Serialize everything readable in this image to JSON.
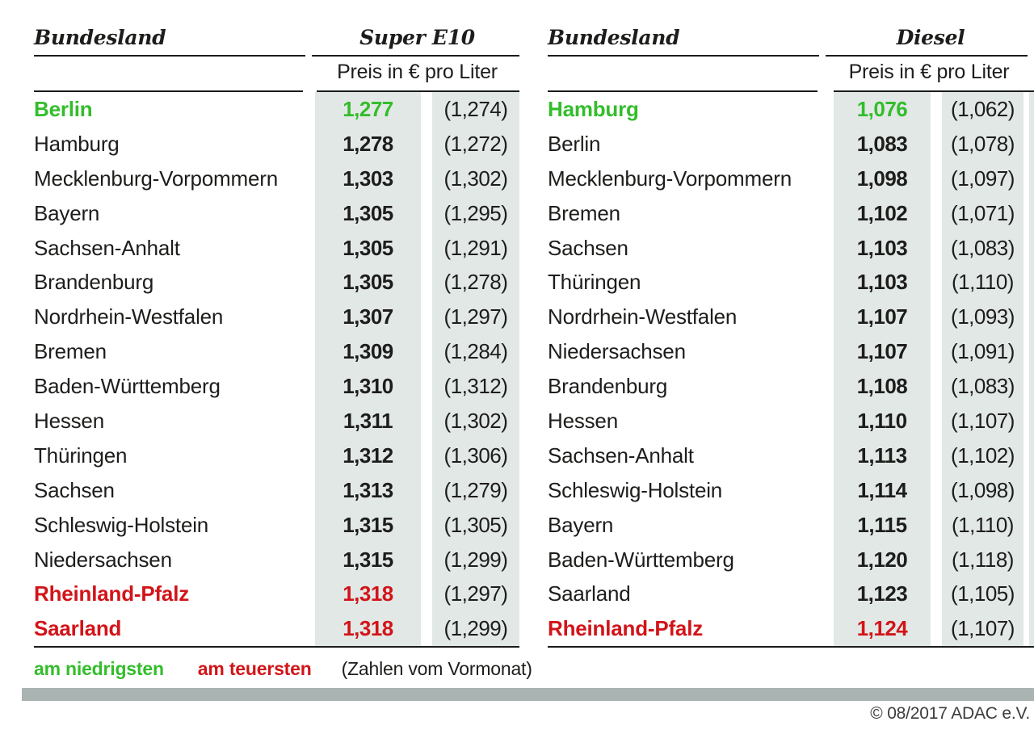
{
  "page": {
    "legend": {
      "lowest_label": "am niedrigsten",
      "highest_label": "am teuersten",
      "footnote": "(Zahlen vom Vormonat)"
    },
    "copyright": "© 08/2017 ADAC e.V.",
    "colors": {
      "lowest_green": "#33bd2b",
      "highest_red": "#d21419",
      "value_column_bg": "#e2e8e6",
      "footer_bar": "#aab4b2",
      "rule": "#1b1b1b",
      "text": "#1d1d1b"
    }
  },
  "chart_data": [
    {
      "type": "table",
      "title": "Super E10",
      "name_header": "Bundesland",
      "unit_header": "Preis in € pro Liter",
      "columns": [
        "Bundesland",
        "Preis in € pro Liter (aktuell)",
        "Preis in € pro Liter (Vormonat)"
      ],
      "legend_note": "gruen = am niedrigsten, rot = am teuersten, Klammerwerte = Vormonat",
      "rows": [
        {
          "name": "Berlin",
          "value": "1,277",
          "prev": "(1,274)",
          "value_eur": 1.277,
          "prev_eur": 1.274,
          "highlight": "lowest"
        },
        {
          "name": "Hamburg",
          "value": "1,278",
          "prev": "(1,272)",
          "value_eur": 1.278,
          "prev_eur": 1.272,
          "highlight": null
        },
        {
          "name": "Mecklenburg-Vorpommern",
          "value": "1,303",
          "prev": "(1,302)",
          "value_eur": 1.303,
          "prev_eur": 1.302,
          "highlight": null
        },
        {
          "name": "Bayern",
          "value": "1,305",
          "prev": "(1,295)",
          "value_eur": 1.305,
          "prev_eur": 1.295,
          "highlight": null
        },
        {
          "name": "Sachsen-Anhalt",
          "value": "1,305",
          "prev": "(1,291)",
          "value_eur": 1.305,
          "prev_eur": 1.291,
          "highlight": null
        },
        {
          "name": "Brandenburg",
          "value": "1,305",
          "prev": "(1,278)",
          "value_eur": 1.305,
          "prev_eur": 1.278,
          "highlight": null
        },
        {
          "name": "Nordrhein-Westfalen",
          "value": "1,307",
          "prev": "(1,297)",
          "value_eur": 1.307,
          "prev_eur": 1.297,
          "highlight": null
        },
        {
          "name": "Bremen",
          "value": "1,309",
          "prev": "(1,284)",
          "value_eur": 1.309,
          "prev_eur": 1.284,
          "highlight": null
        },
        {
          "name": "Baden-Württemberg",
          "value": "1,310",
          "prev": "(1,312)",
          "value_eur": 1.31,
          "prev_eur": 1.312,
          "highlight": null
        },
        {
          "name": "Hessen",
          "value": "1,311",
          "prev": "(1,302)",
          "value_eur": 1.311,
          "prev_eur": 1.302,
          "highlight": null
        },
        {
          "name": "Thüringen",
          "value": "1,312",
          "prev": "(1,306)",
          "value_eur": 1.312,
          "prev_eur": 1.306,
          "highlight": null
        },
        {
          "name": "Sachsen",
          "value": "1,313",
          "prev": "(1,279)",
          "value_eur": 1.313,
          "prev_eur": 1.279,
          "highlight": null
        },
        {
          "name": "Schleswig-Holstein",
          "value": "1,315",
          "prev": "(1,305)",
          "value_eur": 1.315,
          "prev_eur": 1.305,
          "highlight": null
        },
        {
          "name": "Niedersachsen",
          "value": "1,315",
          "prev": "(1,299)",
          "value_eur": 1.315,
          "prev_eur": 1.299,
          "highlight": null
        },
        {
          "name": "Rheinland-Pfalz",
          "value": "1,318",
          "prev": "(1,297)",
          "value_eur": 1.318,
          "prev_eur": 1.297,
          "highlight": "highest"
        },
        {
          "name": "Saarland",
          "value": "1,318",
          "prev": "(1,299)",
          "value_eur": 1.318,
          "prev_eur": 1.299,
          "highlight": "highest"
        }
      ]
    },
    {
      "type": "table",
      "title": "Diesel",
      "name_header": "Bundesland",
      "unit_header": "Preis in € pro Liter",
      "columns": [
        "Bundesland",
        "Preis in € pro Liter (aktuell)",
        "Preis in € pro Liter (Vormonat)"
      ],
      "legend_note": "gruen = am niedrigsten, rot = am teuersten, Klammerwerte = Vormonat",
      "rows": [
        {
          "name": "Hamburg",
          "value": "1,076",
          "prev": "(1,062)",
          "value_eur": 1.076,
          "prev_eur": 1.062,
          "highlight": "lowest"
        },
        {
          "name": "Berlin",
          "value": "1,083",
          "prev": "(1,078)",
          "value_eur": 1.083,
          "prev_eur": 1.078,
          "highlight": null
        },
        {
          "name": "Mecklenburg-Vorpommern",
          "value": "1,098",
          "prev": "(1,097)",
          "value_eur": 1.098,
          "prev_eur": 1.097,
          "highlight": null
        },
        {
          "name": "Bremen",
          "value": "1,102",
          "prev": "(1,071)",
          "value_eur": 1.102,
          "prev_eur": 1.071,
          "highlight": null
        },
        {
          "name": "Sachsen",
          "value": "1,103",
          "prev": "(1,083)",
          "value_eur": 1.103,
          "prev_eur": 1.083,
          "highlight": null
        },
        {
          "name": "Thüringen",
          "value": "1,103",
          "prev": "(1,110)",
          "value_eur": 1.103,
          "prev_eur": 1.11,
          "highlight": null
        },
        {
          "name": "Nordrhein-Westfalen",
          "value": "1,107",
          "prev": "(1,093)",
          "value_eur": 1.107,
          "prev_eur": 1.093,
          "highlight": null
        },
        {
          "name": "Niedersachsen",
          "value": "1,107",
          "prev": "(1,091)",
          "value_eur": 1.107,
          "prev_eur": 1.091,
          "highlight": null
        },
        {
          "name": "Brandenburg",
          "value": "1,108",
          "prev": "(1,083)",
          "value_eur": 1.108,
          "prev_eur": 1.083,
          "highlight": null
        },
        {
          "name": "Hessen",
          "value": "1,110",
          "prev": "(1,107)",
          "value_eur": 1.11,
          "prev_eur": 1.107,
          "highlight": null
        },
        {
          "name": "Sachsen-Anhalt",
          "value": "1,113",
          "prev": "(1,102)",
          "value_eur": 1.113,
          "prev_eur": 1.102,
          "highlight": null
        },
        {
          "name": "Schleswig-Holstein",
          "value": "1,114",
          "prev": "(1,098)",
          "value_eur": 1.114,
          "prev_eur": 1.098,
          "highlight": null
        },
        {
          "name": "Bayern",
          "value": "1,115",
          "prev": "(1,110)",
          "value_eur": 1.115,
          "prev_eur": 1.11,
          "highlight": null
        },
        {
          "name": "Baden-Württemberg",
          "value": "1,120",
          "prev": "(1,118)",
          "value_eur": 1.12,
          "prev_eur": 1.118,
          "highlight": null
        },
        {
          "name": "Saarland",
          "value": "1,123",
          "prev": "(1,105)",
          "value_eur": 1.123,
          "prev_eur": 1.105,
          "highlight": null
        },
        {
          "name": "Rheinland-Pfalz",
          "value": "1,124",
          "prev": "(1,107)",
          "value_eur": 1.124,
          "prev_eur": 1.107,
          "highlight": "highest"
        }
      ]
    }
  ]
}
